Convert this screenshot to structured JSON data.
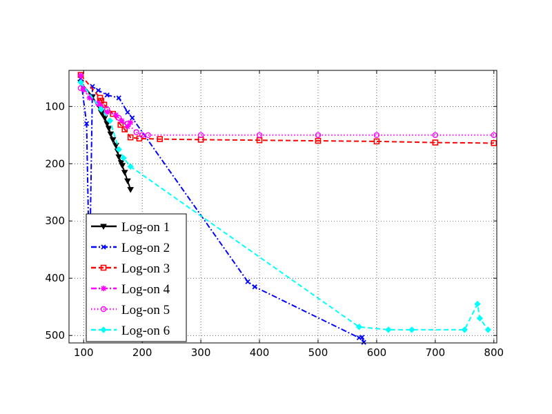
{
  "chart_data": {
    "type": "line",
    "xlim": [
      75,
      805
    ],
    "ylim": [
      513,
      37
    ],
    "y_axis_inverted": true,
    "grid": true,
    "legend_placement": "lower-left",
    "x_ticks": [
      100,
      200,
      300,
      400,
      500,
      600,
      700,
      800
    ],
    "x_tick_labels": [
      "100",
      "200",
      "300",
      "400",
      "500",
      "600",
      "700",
      "800"
    ],
    "y_ticks": [
      100,
      200,
      300,
      400,
      500
    ],
    "y_tick_labels": [
      "100",
      "200",
      "300",
      "400",
      "500"
    ],
    "series": [
      {
        "name": "Log-on 1",
        "color": "#000000",
        "line_style": "solid",
        "marker": "triangle-down",
        "x": [
          95,
          115,
          130,
          132,
          136,
          140,
          143,
          146,
          150,
          155,
          158,
          160,
          164,
          166,
          170,
          175,
          180
        ],
        "y": [
          58,
          83,
          110,
          113,
          120,
          130,
          138,
          148,
          158,
          168,
          178,
          188,
          198,
          203,
          215,
          230,
          245
        ]
      },
      {
        "name": "Log-on 2",
        "color": "#0000ff",
        "line_style": "dashdot",
        "marker": "x",
        "x": [
          95,
          105,
          110,
          115,
          125,
          140,
          160,
          175,
          183,
          380,
          392,
          570,
          575,
          578
        ],
        "y": [
          51,
          130,
          400,
          65,
          72,
          80,
          85,
          110,
          120,
          406,
          415,
          504,
          503,
          512
        ]
      },
      {
        "name": "Log-on 3",
        "color": "#ff0000",
        "line_style": "dashed",
        "marker": "square",
        "x": [
          95,
          128,
          130,
          135,
          150,
          163,
          170,
          180,
          195,
          230,
          300,
          400,
          500,
          600,
          700,
          800
        ],
        "y": [
          45,
          85,
          90,
          97,
          113,
          132,
          140,
          154,
          156,
          157,
          158,
          159,
          160,
          161,
          163,
          164
        ]
      },
      {
        "name": "Log-on 4",
        "color": "#ff00ff",
        "line_style": "dashdot",
        "marker": "asterisk",
        "x": [
          95,
          100,
          110,
          125,
          130,
          140,
          155,
          165,
          175,
          180
        ],
        "y": [
          46,
          70,
          85,
          95,
          100,
          110,
          115,
          125,
          135,
          128
        ]
      },
      {
        "name": "Log-on 5",
        "color": "#ff00ff",
        "line_style": "dotted",
        "marker": "circle",
        "x": [
          95,
          100,
          125,
          140,
          160,
          175,
          190,
          200,
          210,
          300,
          400,
          500,
          600,
          700,
          800
        ],
        "y": [
          68,
          70,
          95,
          105,
          120,
          130,
          145,
          150,
          150,
          150,
          150,
          150,
          150,
          150,
          150
        ]
      },
      {
        "name": "Log-on 6",
        "color": "#00ffff",
        "line_style": "dashed",
        "marker": "diamond",
        "x": [
          95,
          130,
          145,
          160,
          168,
          180,
          570,
          620,
          660,
          750,
          772,
          776,
          790
        ],
        "y": [
          58,
          105,
          125,
          175,
          190,
          205,
          485,
          490,
          490,
          490,
          445,
          470,
          490
        ]
      }
    ],
    "legend": [
      {
        "label": "Log-on 1",
        "color": "#000000",
        "line_style": "solid",
        "marker": "triangle-down"
      },
      {
        "label": "Log-on 2",
        "color": "#0000ff",
        "line_style": "dashdot",
        "marker": "x"
      },
      {
        "label": "Log-on 3",
        "color": "#ff0000",
        "line_style": "dashed",
        "marker": "square"
      },
      {
        "label": "Log-on 4",
        "color": "#ff00ff",
        "line_style": "dashdot",
        "marker": "asterisk"
      },
      {
        "label": "Log-on 5",
        "color": "#ff00ff",
        "line_style": "dotted",
        "marker": "circle"
      },
      {
        "label": "Log-on 6",
        "color": "#00ffff",
        "line_style": "dashed",
        "marker": "diamond"
      }
    ]
  }
}
